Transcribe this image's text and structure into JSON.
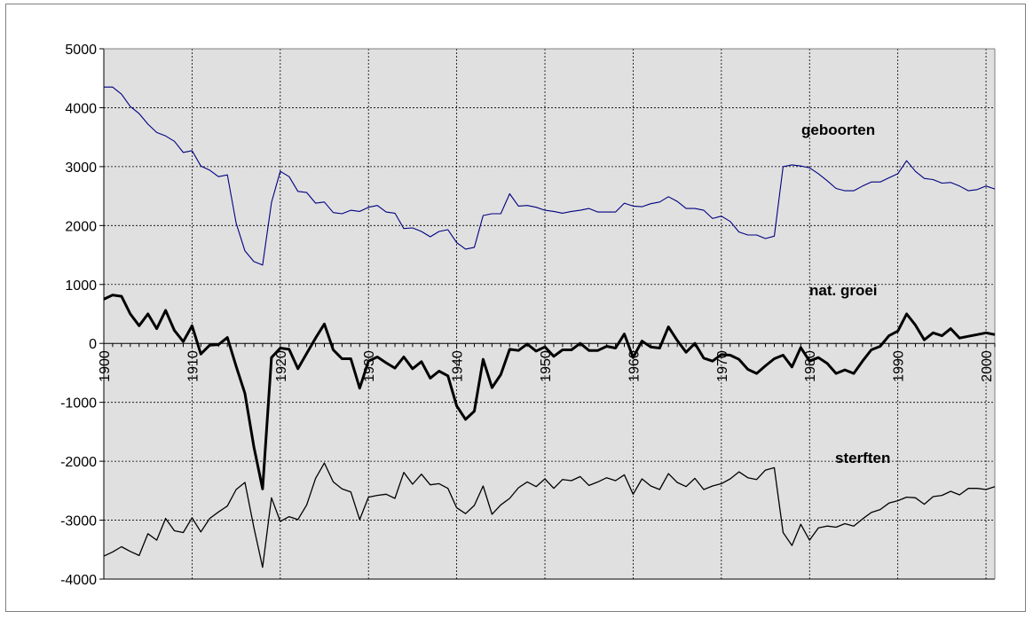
{
  "chart_data": {
    "type": "line",
    "title": "",
    "xlabel": "",
    "ylabel": "",
    "xlim": [
      1900,
      2001
    ],
    "ylim": [
      -4000,
      5000
    ],
    "y_ticks": [
      5000,
      4000,
      3000,
      2000,
      1000,
      0,
      -1000,
      -2000,
      -3000,
      -4000
    ],
    "x_ticks": [
      1900,
      1910,
      1920,
      1930,
      1940,
      1950,
      1960,
      1970,
      1980,
      1990,
      2000
    ],
    "grid": true,
    "plot_background": "#e0e0e0",
    "x": [
      1900,
      1901,
      1902,
      1903,
      1904,
      1905,
      1906,
      1907,
      1908,
      1909,
      1910,
      1911,
      1912,
      1913,
      1914,
      1915,
      1916,
      1917,
      1918,
      1919,
      1920,
      1921,
      1922,
      1923,
      1924,
      1925,
      1926,
      1927,
      1928,
      1929,
      1930,
      1931,
      1932,
      1933,
      1934,
      1935,
      1936,
      1937,
      1938,
      1939,
      1940,
      1941,
      1942,
      1943,
      1944,
      1945,
      1946,
      1947,
      1948,
      1949,
      1950,
      1951,
      1952,
      1953,
      1954,
      1955,
      1956,
      1957,
      1958,
      1959,
      1960,
      1961,
      1962,
      1963,
      1964,
      1965,
      1966,
      1967,
      1968,
      1969,
      1970,
      1971,
      1972,
      1973,
      1974,
      1975,
      1976,
      1977,
      1978,
      1979,
      1980,
      1981,
      1982,
      1983,
      1984,
      1985,
      1986,
      1987,
      1988,
      1989,
      1990,
      1991,
      1992,
      1993,
      1994,
      1995,
      1996,
      1997,
      1998,
      1999,
      2000,
      2001
    ],
    "series": [
      {
        "name": "geboorten",
        "color": "#000080",
        "values": [
          4350,
          4350,
          4230,
          4020,
          3900,
          3720,
          3580,
          3520,
          3430,
          3240,
          3270,
          3010,
          2940,
          2830,
          2860,
          2040,
          1570,
          1390,
          1330,
          2390,
          2920,
          2830,
          2580,
          2560,
          2380,
          2400,
          2220,
          2200,
          2260,
          2240,
          2310,
          2340,
          2230,
          2210,
          1950,
          1960,
          1900,
          1810,
          1900,
          1930,
          1710,
          1600,
          1630,
          2170,
          2200,
          2200,
          2540,
          2330,
          2340,
          2310,
          2260,
          2240,
          2210,
          2240,
          2260,
          2290,
          2230,
          2230,
          2230,
          2380,
          2330,
          2320,
          2370,
          2400,
          2490,
          2410,
          2290,
          2290,
          2260,
          2120,
          2160,
          2070,
          1890,
          1840,
          1840,
          1780,
          1820,
          3000,
          3030,
          3010,
          2980,
          2880,
          2760,
          2630,
          2590,
          2590,
          2670,
          2740,
          2740,
          2810,
          2880,
          3100,
          2920,
          2800,
          2780,
          2720,
          2730,
          2670,
          2590,
          2610,
          2670,
          2620
        ]
      },
      {
        "name": "nat. groei",
        "color": "#000000",
        "values": [
          750,
          820,
          800,
          500,
          300,
          500,
          250,
          560,
          220,
          30,
          300,
          -180,
          -30,
          -20,
          100,
          -390,
          -850,
          -1750,
          -2470,
          -240,
          -80,
          -100,
          -430,
          -170,
          90,
          330,
          -110,
          -260,
          -260,
          -760,
          -300,
          -230,
          -330,
          -420,
          -230,
          -430,
          -310,
          -590,
          -470,
          -550,
          -1060,
          -1290,
          -1150,
          -270,
          -750,
          -530,
          -100,
          -120,
          -10,
          -130,
          -60,
          -220,
          -110,
          -110,
          0,
          -120,
          -120,
          -50,
          -80,
          160,
          -240,
          40,
          -60,
          -80,
          280,
          50,
          -150,
          0,
          -250,
          -300,
          -190,
          -200,
          -270,
          -440,
          -510,
          -380,
          -260,
          -200,
          -400,
          -70,
          -300,
          -240,
          -340,
          -510,
          -450,
          -510,
          -300,
          -110,
          -50,
          130,
          210,
          500,
          310,
          60,
          180,
          130,
          250,
          90,
          120,
          150,
          180,
          150
        ]
      },
      {
        "name": "sterften",
        "color": "#000000",
        "values": [
          -3610,
          -3540,
          -3450,
          -3530,
          -3600,
          -3230,
          -3340,
          -2970,
          -3180,
          -3210,
          -2960,
          -3200,
          -2970,
          -2860,
          -2760,
          -2480,
          -2360,
          -3120,
          -3800,
          -2620,
          -3020,
          -2940,
          -2990,
          -2740,
          -2290,
          -2030,
          -2350,
          -2470,
          -2520,
          -2990,
          -2610,
          -2580,
          -2560,
          -2630,
          -2190,
          -2390,
          -2220,
          -2400,
          -2380,
          -2460,
          -2790,
          -2890,
          -2750,
          -2420,
          -2900,
          -2740,
          -2630,
          -2450,
          -2350,
          -2430,
          -2300,
          -2460,
          -2310,
          -2330,
          -2260,
          -2410,
          -2350,
          -2280,
          -2330,
          -2230,
          -2560,
          -2300,
          -2420,
          -2480,
          -2210,
          -2360,
          -2430,
          -2290,
          -2480,
          -2420,
          -2380,
          -2300,
          -2180,
          -2280,
          -2310,
          -2150,
          -2110,
          -3210,
          -3430,
          -3070,
          -3340,
          -3130,
          -3100,
          -3120,
          -3060,
          -3100,
          -2980,
          -2870,
          -2820,
          -2710,
          -2670,
          -2610,
          -2620,
          -2730,
          -2600,
          -2580,
          -2510,
          -2570,
          -2460,
          -2460,
          -2480,
          -2430
        ]
      }
    ],
    "labels": {
      "geboorten": "geboorten",
      "nat_groei": "nat. groei",
      "sterften": "sterften"
    }
  }
}
